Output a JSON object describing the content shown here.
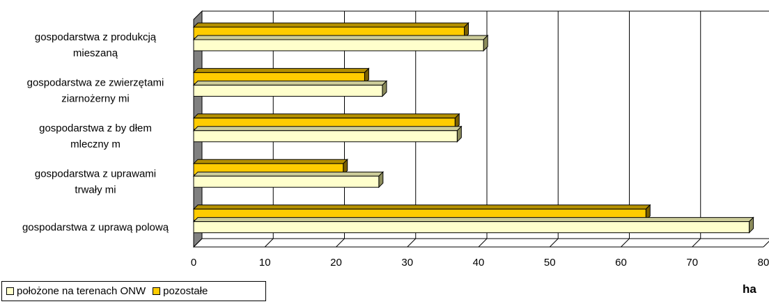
{
  "chart_data": {
    "type": "bar",
    "orientation": "horizontal",
    "categories": [
      [
        "gospodarstwa z produkcją",
        "mieszaną"
      ],
      [
        "gospodarstwa ze zwierzętami",
        "ziarnożerny mi"
      ],
      [
        "gospodarstwa z by dłem",
        "mleczny m"
      ],
      [
        "gospodarstwa z uprawami",
        "trwały mi"
      ],
      [
        "gospodarstwa z uprawą polową"
      ]
    ],
    "series": [
      {
        "name": "położone na terenach ONW",
        "values": [
          40.7,
          26.5,
          37.0,
          26.0,
          78.0
        ]
      },
      {
        "name": "pozostałe",
        "values": [
          38.0,
          24.0,
          36.7,
          21.0,
          63.5
        ]
      }
    ],
    "xlim": [
      0,
      80
    ],
    "xticks": [
      "0",
      "10",
      "20",
      "30",
      "40",
      "50",
      "60",
      "70",
      "80"
    ],
    "xlabel": "ha",
    "grid": true,
    "legend_position": "bottom-left",
    "colors": {
      "series1_face": "#ffffcc",
      "series1_top": "#cccc99",
      "series1_end": "#8c8c5c",
      "series2_face": "#ffcc00",
      "series2_top": "#b38f00",
      "series2_end": "#7a6000",
      "wall": "#808080",
      "grid": "#000000"
    }
  },
  "legend": {
    "item1": "położone na terenach ONW",
    "item2": "pozostałe"
  },
  "unit_label": "ha"
}
